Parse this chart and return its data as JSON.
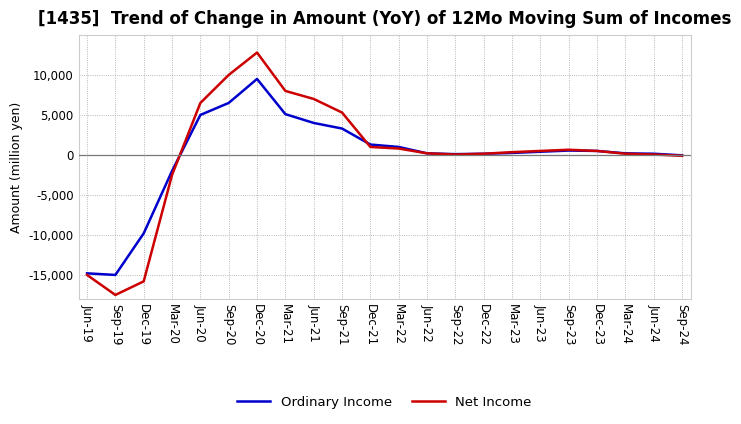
{
  "title": "[1435]  Trend of Change in Amount (YoY) of 12Mo Moving Sum of Incomes",
  "ylabel": "Amount (million yen)",
  "x_labels": [
    "Jun-19",
    "Sep-19",
    "Dec-19",
    "Mar-20",
    "Jun-20",
    "Sep-20",
    "Dec-20",
    "Mar-21",
    "Jun-21",
    "Sep-21",
    "Dec-21",
    "Mar-22",
    "Jun-22",
    "Sep-22",
    "Dec-22",
    "Mar-23",
    "Jun-23",
    "Sep-23",
    "Dec-23",
    "Mar-24",
    "Jun-24",
    "Sep-24"
  ],
  "ordinary_income": [
    -14800,
    -15000,
    -9800,
    -2000,
    5000,
    6500,
    9500,
    5100,
    4000,
    3300,
    1300,
    1000,
    200,
    100,
    150,
    250,
    400,
    550,
    500,
    200,
    150,
    -50
  ],
  "net_income": [
    -15000,
    -17500,
    -15800,
    -2500,
    6500,
    10000,
    12800,
    8000,
    7000,
    5300,
    1000,
    800,
    200,
    50,
    150,
    350,
    500,
    650,
    500,
    150,
    50,
    -100
  ],
  "ordinary_color": "#0000cc",
  "net_color": "#cc0000",
  "ylim": [
    -18000,
    15000
  ],
  "yticks": [
    -15000,
    -10000,
    -5000,
    0,
    5000,
    10000
  ],
  "background_color": "#ffffff",
  "grid_color": "#999999",
  "line_width": 1.8,
  "legend_labels": [
    "Ordinary Income",
    "Net Income"
  ],
  "title_fontsize": 12,
  "ylabel_fontsize": 9,
  "tick_fontsize": 8.5
}
